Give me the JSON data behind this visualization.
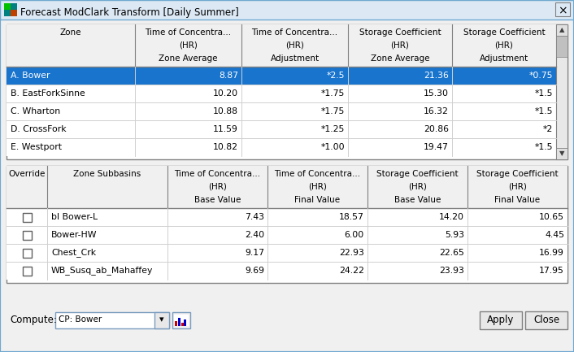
{
  "title": "Forecast ModClark Transform [Daily Summer]",
  "bg_color": "#f0f0f0",
  "table1_header_lines": [
    [
      "Zone",
      "",
      ""
    ],
    [
      "Time of Concentra...",
      "(HR)",
      "Zone Average"
    ],
    [
      "Time of Concentra...",
      "(HR)",
      "Adjustment"
    ],
    [
      "Storage Coefficient",
      "(HR)",
      "Zone Average"
    ],
    [
      "Storage Coefficient",
      "(HR)",
      "Adjustment"
    ]
  ],
  "table1_rows": [
    [
      "A. Bower",
      "8.87",
      "*2.5",
      "21.36",
      "*0.75"
    ],
    [
      "B. EastForkSinne",
      "10.20",
      "*1.75",
      "15.30",
      "*1.5"
    ],
    [
      "C. Wharton",
      "10.88",
      "*1.75",
      "16.32",
      "*1.5"
    ],
    [
      "D. CrossFork",
      "11.59",
      "*1.25",
      "20.86",
      "*2"
    ],
    [
      "E. Westport",
      "10.82",
      "*1.00",
      "19.47",
      "*1.5"
    ]
  ],
  "table2_header_lines": [
    [
      "Override",
      "",
      ""
    ],
    [
      "Zone Subbasins",
      "",
      ""
    ],
    [
      "Time of Concentra...",
      "(HR)",
      "Base Value"
    ],
    [
      "Time of Concentra...",
      "(HR)",
      "Final Value"
    ],
    [
      "Storage Coefficient",
      "(HR)",
      "Base Value"
    ],
    [
      "Storage Coefficient",
      "(HR)",
      "Final Value"
    ]
  ],
  "table2_rows": [
    [
      "bl Bower-L",
      "7.43",
      "18.57",
      "14.20",
      "10.65"
    ],
    [
      "Bower-HW",
      "2.40",
      "6.00",
      "5.93",
      "4.45"
    ],
    [
      "Chest_Crk",
      "9.17",
      "22.93",
      "22.65",
      "16.99"
    ],
    [
      "WB_Susq_ab_Mahaffey",
      "9.69",
      "24.22",
      "23.93",
      "17.95"
    ]
  ],
  "selected_row_color": "#1874CD",
  "selected_text_color": "#ffffff",
  "header_bg": "#f0f0f0",
  "row_bg": "#ffffff",
  "compute_label": "Compute:",
  "compute_value": "CP: Bower",
  "button1": "Apply",
  "button2": "Close",
  "titlebar_bg": "#dce9f5",
  "titlebar_border": "#6fa8d0",
  "window_border": "#6fa8d0",
  "table_border": "#808080",
  "row_divider": "#d0d0d0",
  "scrollbar_bg": "#e8e8e8",
  "scrollbar_thumb": "#c0c0c0",
  "fontsize_header": 7.5,
  "fontsize_data": 7.8,
  "fontsize_title": 8.5
}
